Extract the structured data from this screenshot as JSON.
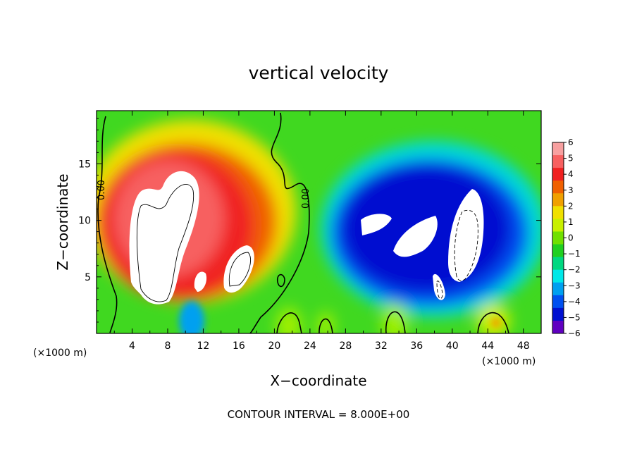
{
  "chart_data": {
    "type": "heatmap",
    "title": "vertical velocity",
    "xlabel": "X−coordinate",
    "ylabel": "Z−coordinate",
    "x_unit": "(×1000 m)",
    "z_unit": "(×1000 m)",
    "xlim": [
      0,
      50
    ],
    "ylim": [
      0,
      19.7
    ],
    "x_ticks": [
      4,
      8,
      12,
      16,
      20,
      24,
      28,
      32,
      36,
      40,
      44,
      48
    ],
    "y_ticks": [
      5,
      10,
      15
    ],
    "colorbar": {
      "min": -6,
      "max": 6,
      "ticks": [
        6,
        5,
        4,
        3,
        2,
        1,
        0,
        -1,
        -2,
        -3,
        -4,
        -5,
        -6
      ],
      "colors": [
        "#f7a0a0",
        "#f76060",
        "#f02020",
        "#f06000",
        "#f0a000",
        "#f0e000",
        "#c8f000",
        "#70e000",
        "#20d020",
        "#00d880",
        "#00e8e8",
        "#00a0f0",
        "#0050f0",
        "#0010d0",
        "#6000c0"
      ]
    },
    "field_features": [
      {
        "kind": "updraft",
        "x": 8,
        "z": 9,
        "peak": 6,
        "note": "saturated above scale"
      },
      {
        "kind": "updraft",
        "x": 15,
        "z": 7,
        "peak": 6
      },
      {
        "kind": "updraft",
        "x": 18,
        "z": 5,
        "peak": 3
      },
      {
        "kind": "downdraft",
        "x": 33,
        "z": 9,
        "peak": -6,
        "note": "saturated below scale"
      },
      {
        "kind": "downdraft",
        "x": 40,
        "z": 8,
        "peak": -6
      },
      {
        "kind": "downdraft",
        "x": 44,
        "z": 12,
        "peak": -5
      }
    ],
    "contour_labels": [
      "0.00",
      "0.00"
    ],
    "contour_interval_text": "CONTOUR INTERVAL = 8.000E+00"
  }
}
